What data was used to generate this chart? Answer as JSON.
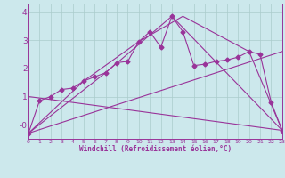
{
  "xlabel": "Windchill (Refroidissement éolien,°C)",
  "xlim": [
    0,
    23
  ],
  "ylim": [
    -0.5,
    4.3
  ],
  "xticks": [
    0,
    1,
    2,
    3,
    4,
    5,
    6,
    7,
    8,
    9,
    10,
    11,
    12,
    13,
    14,
    15,
    16,
    17,
    18,
    19,
    20,
    21,
    22,
    23
  ],
  "yticks": [
    0,
    1,
    2,
    3,
    4
  ],
  "ytick_labels": [
    "-0",
    "1",
    "2",
    "3",
    "4"
  ],
  "bg_color": "#cce8ec",
  "line_color": "#993399",
  "grid_color": "#aacccc",
  "lines": [
    {
      "x": [
        0,
        1,
        2,
        3,
        4,
        5,
        6,
        7,
        8,
        9,
        10,
        11,
        12,
        13,
        14,
        15,
        16,
        17,
        18,
        19,
        20,
        21,
        22,
        23
      ],
      "y": [
        -0.3,
        0.85,
        1.0,
        1.25,
        1.3,
        1.55,
        1.7,
        1.85,
        2.2,
        2.25,
        2.95,
        3.3,
        2.75,
        3.85,
        3.3,
        2.1,
        2.15,
        2.25,
        2.3,
        2.4,
        2.6,
        2.5,
        0.8,
        -0.2
      ],
      "marker": "D",
      "markersize": 2.5,
      "has_marker": true
    },
    {
      "x": [
        0,
        23
      ],
      "y": [
        -0.3,
        2.6
      ],
      "has_marker": false
    },
    {
      "x": [
        0,
        5,
        10,
        14,
        20,
        23
      ],
      "y": [
        -0.3,
        1.55,
        2.95,
        3.85,
        2.6,
        -0.2
      ],
      "has_marker": false
    },
    {
      "x": [
        0,
        7,
        13,
        23
      ],
      "y": [
        -0.3,
        1.85,
        3.85,
        -0.2
      ],
      "has_marker": false
    },
    {
      "x": [
        0,
        23
      ],
      "y": [
        1.0,
        -0.2
      ],
      "has_marker": false
    }
  ]
}
